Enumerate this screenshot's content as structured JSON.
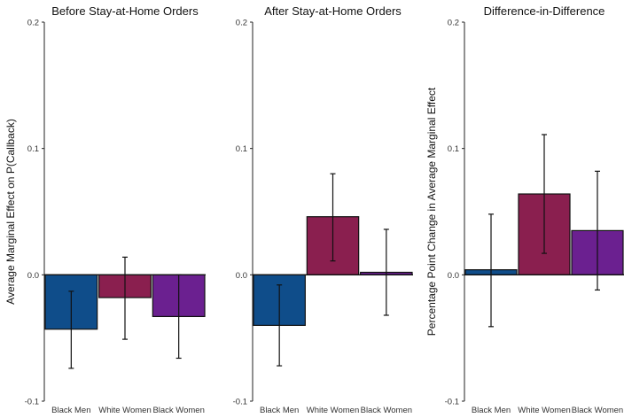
{
  "chart_data": [
    {
      "type": "bar",
      "title": "Before Stay-at-Home Orders",
      "ylabel": "Average Marginal Effect on P(Callback)",
      "xlabel": "",
      "ylim": [
        -0.1,
        0.2
      ],
      "yticks": [
        "-0.1",
        "0.0",
        "0.1",
        "0.2"
      ],
      "categories": [
        "Black Men",
        "White Women",
        "Black Women"
      ],
      "values": [
        -0.043,
        -0.018,
        -0.033
      ],
      "error_low": [
        -0.074,
        -0.051,
        -0.066
      ],
      "error_high": [
        -0.013,
        0.014,
        0.0
      ],
      "colors": [
        "#0f4d8a",
        "#8a1f4f",
        "#6b2090"
      ]
    },
    {
      "type": "bar",
      "title": "After Stay-at-Home Orders",
      "ylabel": "",
      "xlabel": "",
      "ylim": [
        -0.1,
        0.2
      ],
      "yticks": [
        "-0.1",
        "0.0",
        "0.1",
        "0.2"
      ],
      "categories": [
        "Black Men",
        "White Women",
        "Black Women"
      ],
      "values": [
        -0.04,
        0.046,
        0.002
      ],
      "error_low": [
        -0.072,
        0.011,
        -0.032
      ],
      "error_high": [
        -0.008,
        0.08,
        0.036
      ],
      "colors": [
        "#0f4d8a",
        "#8a1f4f",
        "#6b2090"
      ]
    },
    {
      "type": "bar",
      "title": "Difference-in-Difference",
      "ylabel": "Percentage Point Change in Average Marginal Effect",
      "xlabel": "",
      "ylim": [
        -0.1,
        0.2
      ],
      "yticks": [
        "-0.1",
        "0.0",
        "0.1",
        "0.2"
      ],
      "categories": [
        "Black Men",
        "White Women",
        "Black Women"
      ],
      "values": [
        0.004,
        0.064,
        0.035
      ],
      "error_low": [
        -0.041,
        0.017,
        -0.012
      ],
      "error_high": [
        0.048,
        0.111,
        0.082
      ],
      "colors": [
        "#0f4d8a",
        "#8a1f4f",
        "#6b2090"
      ]
    }
  ]
}
